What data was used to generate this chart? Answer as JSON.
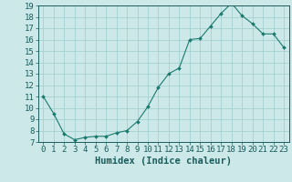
{
  "x": [
    0,
    1,
    2,
    3,
    4,
    5,
    6,
    7,
    8,
    9,
    10,
    11,
    12,
    13,
    14,
    15,
    16,
    17,
    18,
    19,
    20,
    21,
    22,
    23
  ],
  "y": [
    11.0,
    9.5,
    7.7,
    7.2,
    7.4,
    7.5,
    7.5,
    7.8,
    8.0,
    8.8,
    10.1,
    11.8,
    13.0,
    13.5,
    16.0,
    16.1,
    17.2,
    18.3,
    19.2,
    18.1,
    17.4,
    16.5,
    16.5,
    15.3
  ],
  "line_color": "#1a7a6e",
  "marker": "D",
  "marker_size": 2,
  "bg_color": "#cce8e8",
  "grid_color": "#9ecece",
  "xlabel": "Humidex (Indice chaleur)",
  "xlim": [
    -0.5,
    23.5
  ],
  "ylim": [
    7,
    19
  ],
  "yticks": [
    7,
    8,
    9,
    10,
    11,
    12,
    13,
    14,
    15,
    16,
    17,
    18,
    19
  ],
  "xticks": [
    0,
    1,
    2,
    3,
    4,
    5,
    6,
    7,
    8,
    9,
    10,
    11,
    12,
    13,
    14,
    15,
    16,
    17,
    18,
    19,
    20,
    21,
    22,
    23
  ],
  "font_color": "#1a5c5c",
  "font_size": 6.5,
  "label_font_size": 7.5
}
